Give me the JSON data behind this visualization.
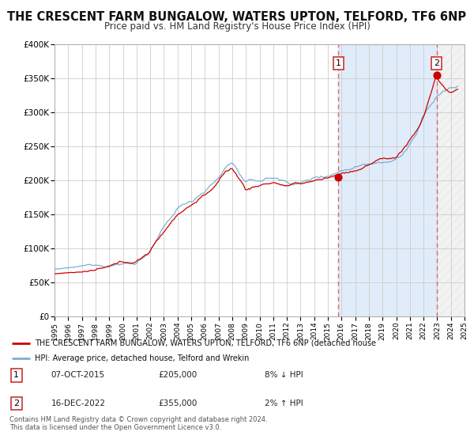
{
  "title": "THE CRESCENT FARM BUNGALOW, WATERS UPTON, TELFORD, TF6 6NP",
  "subtitle": "Price paid vs. HM Land Registry's House Price Index (HPI)",
  "title_fontsize": 10.5,
  "subtitle_fontsize": 8.5,
  "xlim": [
    1995,
    2025
  ],
  "ylim": [
    0,
    400000
  ],
  "yticks": [
    0,
    50000,
    100000,
    150000,
    200000,
    250000,
    300000,
    350000,
    400000
  ],
  "ytick_labels": [
    "£0",
    "£50K",
    "£100K",
    "£150K",
    "£200K",
    "£250K",
    "£300K",
    "£350K",
    "£400K"
  ],
  "xticks": [
    1995,
    1996,
    1997,
    1998,
    1999,
    2000,
    2001,
    2002,
    2003,
    2004,
    2005,
    2006,
    2007,
    2008,
    2009,
    2010,
    2011,
    2012,
    2013,
    2014,
    2015,
    2016,
    2017,
    2018,
    2019,
    2020,
    2021,
    2022,
    2023,
    2024,
    2025
  ],
  "grid_color": "#cccccc",
  "background_color": "#ffffff",
  "plot_bg_color": "#ffffff",
  "hpi_color": "#7bafd4",
  "price_color": "#cc0000",
  "marker1_x": 2015.77,
  "marker1_y": 205000,
  "marker2_x": 2022.96,
  "marker2_y": 355000,
  "vline_color": "#dd6666",
  "blue_shade_start": 2015.77,
  "blue_shade_end": 2022.96,
  "hatch_start": 2022.96,
  "hatch_end": 2025,
  "legend_label_price": "THE CRESCENT FARM BUNGALOW, WATERS UPTON, TELFORD, TF6 6NP (detached house",
  "legend_label_hpi": "HPI: Average price, detached house, Telford and Wrekin",
  "table_row1_num": "1",
  "table_row1_date": "07-OCT-2015",
  "table_row1_price": "£205,000",
  "table_row1_hpi": "8% ↓ HPI",
  "table_row2_num": "2",
  "table_row2_date": "16-DEC-2022",
  "table_row2_price": "£355,000",
  "table_row2_hpi": "2% ↑ HPI",
  "footer1": "Contains HM Land Registry data © Crown copyright and database right 2024.",
  "footer2": "This data is licensed under the Open Government Licence v3.0."
}
